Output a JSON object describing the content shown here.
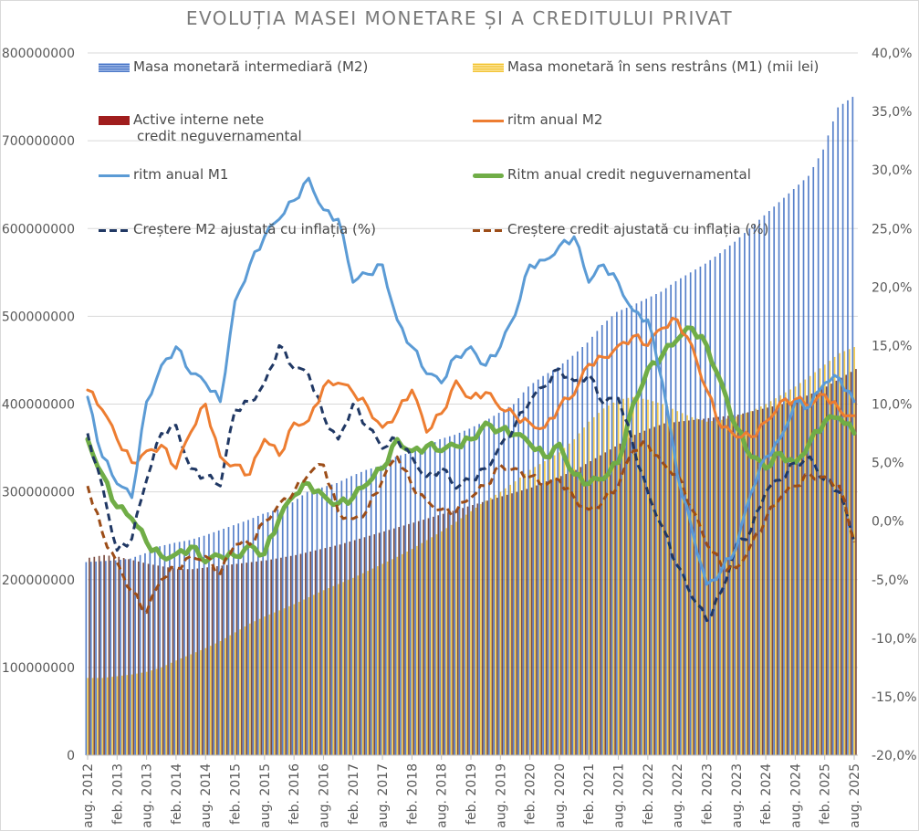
{
  "chart_data": {
    "type": "bar",
    "title": "EVOLUȚIA MASEI MONETARE ȘI A CREDITULUI PRIVAT",
    "xlabel": "",
    "ylabel_left": "",
    "ylabel_right": "",
    "ylim_left": [
      0,
      800000000
    ],
    "ylim_right": [
      -0.2,
      0.4
    ],
    "yticks_left": [
      "0",
      "100000000",
      "200000000",
      "300000000",
      "400000000",
      "500000000",
      "600000000",
      "700000000",
      "800000000"
    ],
    "yticks_right": [
      "-20,0%",
      "-15,0%",
      "-10,0%",
      "-5,0%",
      "0,0%",
      "5,0%",
      "10,0%",
      "15,0%",
      "20,0%",
      "25,0%",
      "30,0%",
      "35,0%",
      "40,0%"
    ],
    "x_start": "aug. 2012",
    "x_end": "aug. 2025",
    "x_frequency": "monthly",
    "sample_step_months": 3,
    "xticks": [
      "aug. 2012",
      "feb. 2013",
      "aug. 2013",
      "feb. 2014",
      "aug. 2014",
      "feb. 2015",
      "aug. 2015",
      "feb. 2016",
      "aug. 2016",
      "feb. 2017",
      "aug. 2017",
      "feb. 2018",
      "aug. 2018",
      "feb. 2019",
      "aug. 2019",
      "feb. 2020",
      "aug. 2020",
      "feb. 2021",
      "aug. 2021",
      "feb. 2022",
      "aug. 2022",
      "feb. 2023",
      "aug. 2023",
      "feb. 2024",
      "aug. 2024",
      "feb. 2025",
      "aug. 2025"
    ],
    "grid": true,
    "legend_position": "top",
    "bar_series": [
      {
        "name": "Masa monetară intermediară (M2)",
        "axis": "left",
        "color": "#4472c4",
        "values": [
          220000000,
          221000000,
          222000000,
          224000000,
          230000000,
          238000000,
          242000000,
          245000000,
          250000000,
          256000000,
          262000000,
          268000000,
          275000000,
          280000000,
          288000000,
          300000000,
          305000000,
          310000000,
          318000000,
          325000000,
          330000000,
          340000000,
          345000000,
          350000000,
          360000000,
          365000000,
          372000000,
          380000000,
          390000000,
          400000000,
          420000000,
          432000000,
          442000000,
          455000000,
          470000000,
          490000000,
          505000000,
          512000000,
          520000000,
          528000000,
          540000000,
          550000000,
          560000000,
          572000000,
          585000000,
          600000000,
          615000000,
          630000000,
          645000000,
          660000000,
          690000000,
          738000000,
          750000000
        ]
      },
      {
        "name": "Masa monetară în sens restrâns (M1) (mii lei)",
        "axis": "left",
        "color": "#ffc000",
        "values": [
          88000000,
          88000000,
          90000000,
          92000000,
          95000000,
          100000000,
          108000000,
          115000000,
          122000000,
          130000000,
          140000000,
          150000000,
          158000000,
          165000000,
          172000000,
          180000000,
          188000000,
          195000000,
          202000000,
          210000000,
          218000000,
          226000000,
          235000000,
          245000000,
          255000000,
          266000000,
          278000000,
          290000000,
          300000000,
          312000000,
          325000000,
          335000000,
          345000000,
          360000000,
          380000000,
          395000000,
          405000000,
          408000000,
          405000000,
          400000000,
          392000000,
          385000000,
          380000000,
          382000000,
          386000000,
          392000000,
          400000000,
          410000000,
          420000000,
          432000000,
          445000000,
          458000000,
          465000000
        ]
      },
      {
        "name": "Active interne nete credit neguvernamental",
        "axis": "left",
        "color": "#7b2c2c",
        "values": [
          225000000,
          228000000,
          226000000,
          222000000,
          218000000,
          215000000,
          212000000,
          212000000,
          214000000,
          216000000,
          218000000,
          220000000,
          222000000,
          225000000,
          228000000,
          232000000,
          236000000,
          240000000,
          245000000,
          250000000,
          255000000,
          260000000,
          265000000,
          270000000,
          275000000,
          280000000,
          285000000,
          290000000,
          295000000,
          300000000,
          305000000,
          312000000,
          318000000,
          325000000,
          335000000,
          345000000,
          355000000,
          365000000,
          372000000,
          378000000,
          380000000,
          382000000,
          384000000,
          386000000,
          388000000,
          392000000,
          396000000,
          400000000,
          405000000,
          412000000,
          420000000,
          430000000,
          440000000
        ]
      }
    ],
    "line_series": [
      {
        "name": "ritm anual M2",
        "axis": "right",
        "color": "#ed7d31",
        "style": "solid",
        "values": [
          0.112,
          0.095,
          0.07,
          0.05,
          0.06,
          0.065,
          0.045,
          0.076,
          0.1,
          0.055,
          0.048,
          0.04,
          0.07,
          0.056,
          0.084,
          0.086,
          0.115,
          0.118,
          0.11,
          0.098,
          0.08,
          0.093,
          0.112,
          0.076,
          0.092,
          0.12,
          0.105,
          0.11,
          0.096,
          0.09,
          0.084,
          0.08,
          0.098,
          0.108,
          0.134,
          0.14,
          0.15,
          0.158,
          0.15,
          0.165,
          0.172,
          0.15,
          0.112,
          0.08,
          0.072,
          0.072,
          0.085,
          0.102,
          0.104,
          0.098,
          0.108,
          0.095,
          0.09
        ]
      },
      {
        "name": "ritm anual M1",
        "axis": "right",
        "color": "#5b9bd5",
        "style": "solid",
        "values": [
          0.106,
          0.055,
          0.032,
          0.02,
          0.102,
          0.133,
          0.149,
          0.126,
          0.118,
          0.102,
          0.188,
          0.219,
          0.243,
          0.258,
          0.274,
          0.293,
          0.266,
          0.258,
          0.204,
          0.211,
          0.219,
          0.172,
          0.149,
          0.126,
          0.118,
          0.141,
          0.149,
          0.133,
          0.149,
          0.176,
          0.219,
          0.223,
          0.235,
          0.243,
          0.204,
          0.219,
          0.204,
          0.18,
          0.172,
          0.118,
          0.04,
          -0.007,
          -0.054,
          -0.042,
          -0.023,
          0.024,
          0.055,
          0.071,
          0.102,
          0.098,
          0.118,
          0.122,
          0.102
        ]
      },
      {
        "name": "Ritm anual credit neguvernamental",
        "axis": "right",
        "color": "#70ad47",
        "style": "thick",
        "values": [
          0.07,
          0.04,
          0.012,
          0.002,
          -0.018,
          -0.03,
          -0.028,
          -0.022,
          -0.035,
          -0.03,
          -0.03,
          -0.02,
          -0.028,
          0.002,
          0.022,
          0.032,
          0.022,
          0.015,
          0.02,
          0.032,
          0.045,
          0.07,
          0.06,
          0.064,
          0.06,
          0.064,
          0.07,
          0.084,
          0.078,
          0.074,
          0.066,
          0.055,
          0.066,
          0.04,
          0.032,
          0.036,
          0.05,
          0.1,
          0.13,
          0.142,
          0.155,
          0.165,
          0.15,
          0.118,
          0.08,
          0.055,
          0.045,
          0.058,
          0.05,
          0.068,
          0.085,
          0.088,
          0.075
        ]
      },
      {
        "name": "Creștere M2 ajustată cu inflația (%)",
        "axis": "right",
        "color": "#203864",
        "style": "dash",
        "values": [
          0.075,
          0.03,
          -0.025,
          -0.015,
          0.035,
          0.075,
          0.082,
          0.045,
          0.038,
          0.03,
          0.095,
          0.102,
          0.118,
          0.15,
          0.13,
          0.125,
          0.09,
          0.07,
          0.1,
          0.08,
          0.062,
          0.07,
          0.055,
          0.038,
          0.045,
          0.028,
          0.035,
          0.045,
          0.065,
          0.082,
          0.102,
          0.115,
          0.13,
          0.12,
          0.125,
          0.1,
          0.105,
          0.065,
          0.025,
          -0.005,
          -0.038,
          -0.065,
          -0.085,
          -0.06,
          -0.02,
          -0.008,
          0.025,
          0.035,
          0.05,
          0.055,
          0.035,
          0.025,
          -0.018
        ]
      },
      {
        "name": "Creștere credit ajustată cu inflația (%)",
        "axis": "right",
        "color": "#9c4d18",
        "style": "dash",
        "values": [
          0.03,
          -0.01,
          -0.035,
          -0.06,
          -0.078,
          -0.05,
          -0.04,
          -0.03,
          -0.03,
          -0.045,
          -0.02,
          -0.02,
          0.0,
          0.015,
          0.025,
          0.04,
          0.048,
          0.008,
          0.002,
          0.01,
          0.035,
          0.055,
          0.03,
          0.018,
          0.01,
          0.008,
          0.02,
          0.03,
          0.048,
          0.045,
          0.038,
          0.03,
          0.035,
          0.02,
          0.01,
          0.018,
          0.03,
          0.06,
          0.066,
          0.05,
          0.04,
          0.01,
          -0.02,
          -0.038,
          -0.04,
          -0.02,
          0.002,
          0.02,
          0.03,
          0.04,
          0.038,
          0.03,
          -0.018
        ]
      }
    ]
  },
  "legend": {
    "items": [
      {
        "label": "Masa monetară intermediară (M2)"
      },
      {
        "label": "Masa monetară în sens restrâns (M1) (mii lei)"
      },
      {
        "label": "Active interne nete",
        "label2": "credit neguvernamental"
      },
      {
        "label": "ritm anual M2"
      },
      {
        "label": "ritm anual M1"
      },
      {
        "label": "Ritm anual credit neguvernamental"
      },
      {
        "label": "Creștere M2 ajustată cu inflația (%)"
      },
      {
        "label": "Creștere credit ajustată cu inflația (%)"
      }
    ]
  }
}
